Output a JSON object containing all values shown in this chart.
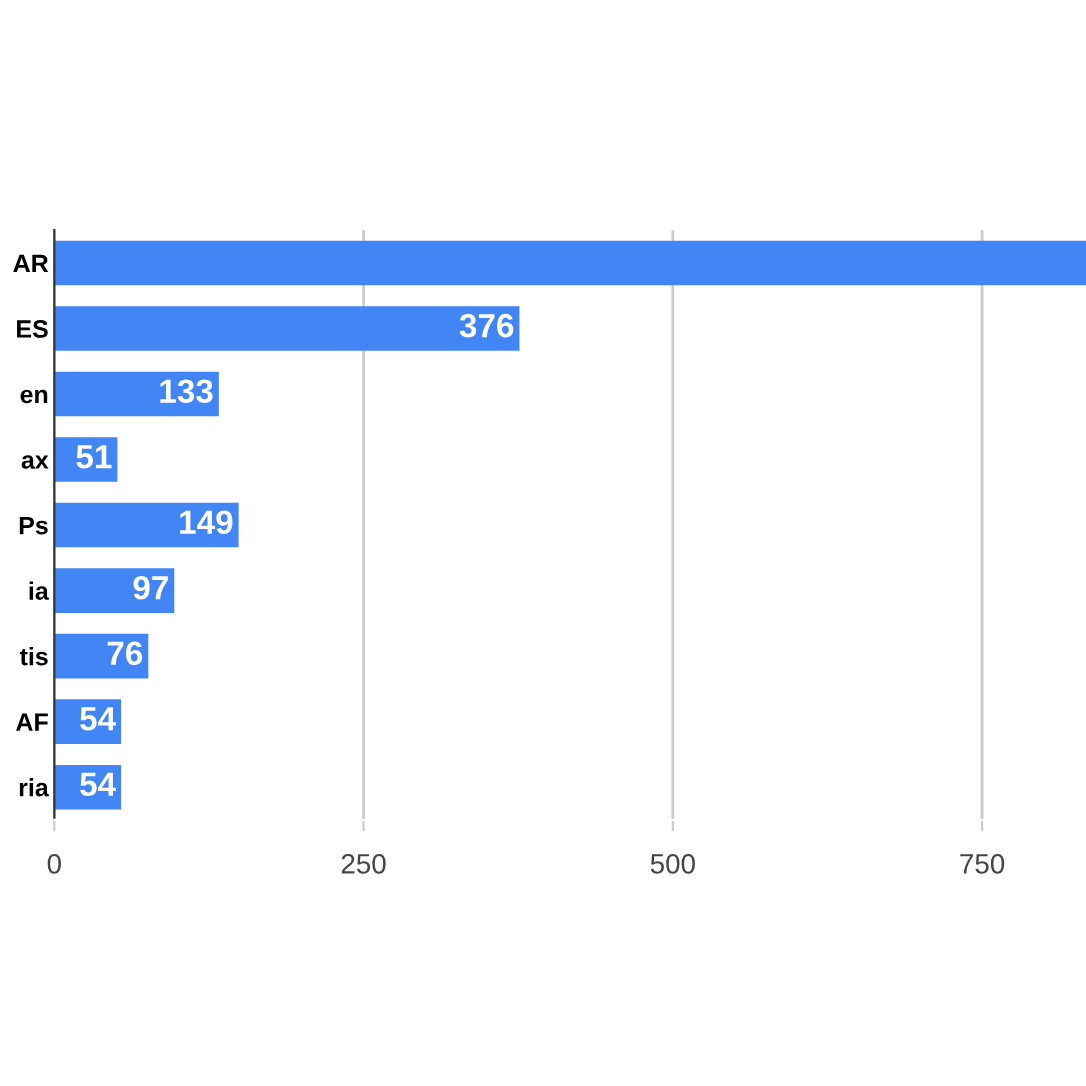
{
  "chart_data": {
    "type": "bar",
    "orientation": "horizontal",
    "categories": [
      "AR",
      "ES",
      "en",
      "ax",
      "Ps",
      "ia",
      "tis",
      "AF",
      "ria"
    ],
    "values": [
      834,
      376,
      133,
      51,
      149,
      97,
      76,
      54,
      54
    ],
    "value_labels": [
      null,
      "376",
      "133",
      "51",
      "149",
      "97",
      "76",
      "54",
      "54"
    ],
    "color": "#4285f4",
    "xlim": [
      0,
      834
    ],
    "xticks": [
      0,
      250,
      500,
      750
    ],
    "grid": "x"
  }
}
